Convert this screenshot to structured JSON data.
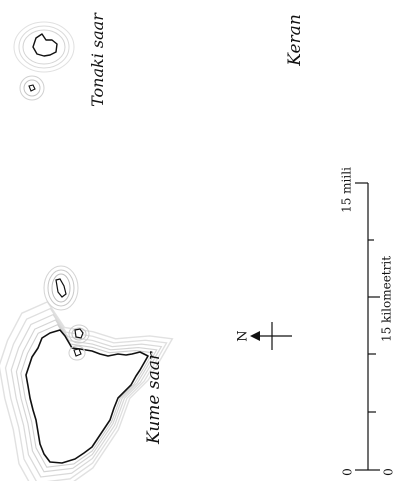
{
  "labels": {
    "kume": "Kume saar",
    "tonaki": "Tonaki saar",
    "kerama_partial": "Keran"
  },
  "north_arrow": {
    "letter": "N"
  },
  "scale_bar": {
    "miles_zero": "0",
    "miles_label": "15 miili",
    "km_zero": "0",
    "km_label": "15 kilomeetrit"
  },
  "colors": {
    "coast_line": "#111111",
    "halo": "#bdbdbd",
    "background": "#ffffff"
  }
}
